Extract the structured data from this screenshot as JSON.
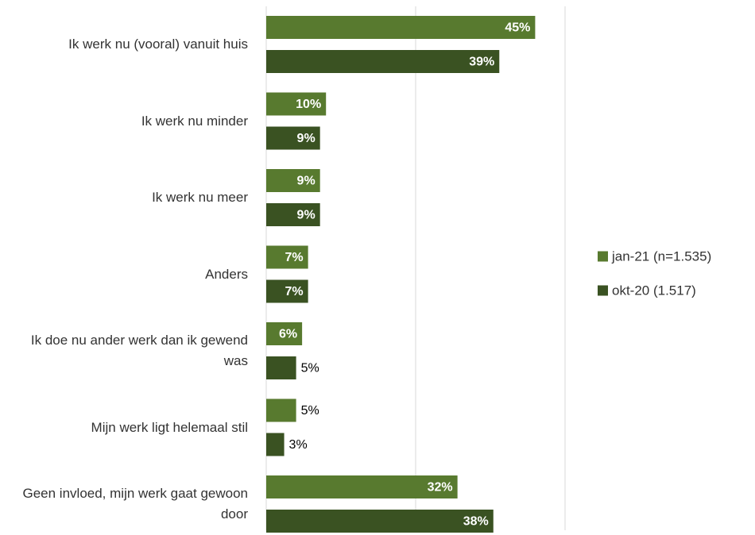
{
  "chart_data": {
    "type": "bar",
    "orientation": "horizontal",
    "categories": [
      "Ik werk nu (vooral) vanuit huis",
      "Ik werk nu minder",
      "Ik werk nu meer",
      "Anders",
      "Ik doe nu ander werk dan ik gewend was",
      "Mijn werk ligt helemaal stil",
      "Geen invloed, mijn werk gaat gewoon door"
    ],
    "series": [
      {
        "name": "jan-21 (n=1.535)",
        "color": "#587a2f",
        "values": [
          45,
          10,
          9,
          7,
          6,
          5,
          32
        ],
        "value_labels": [
          "45%",
          "10%",
          "9%",
          "7%",
          "6%",
          "5%",
          "32%"
        ]
      },
      {
        "name": "okt-20 (1.517)",
        "color": "#3a5222",
        "values": [
          39,
          9,
          9,
          7,
          5,
          3,
          38
        ],
        "value_labels": [
          "39%",
          "9%",
          "9%",
          "7%",
          "5%",
          "3%",
          "38%"
        ]
      }
    ],
    "xlim": [
      0,
      50
    ],
    "xticks": [
      0,
      25,
      50
    ],
    "grid": true,
    "legend": "right"
  }
}
